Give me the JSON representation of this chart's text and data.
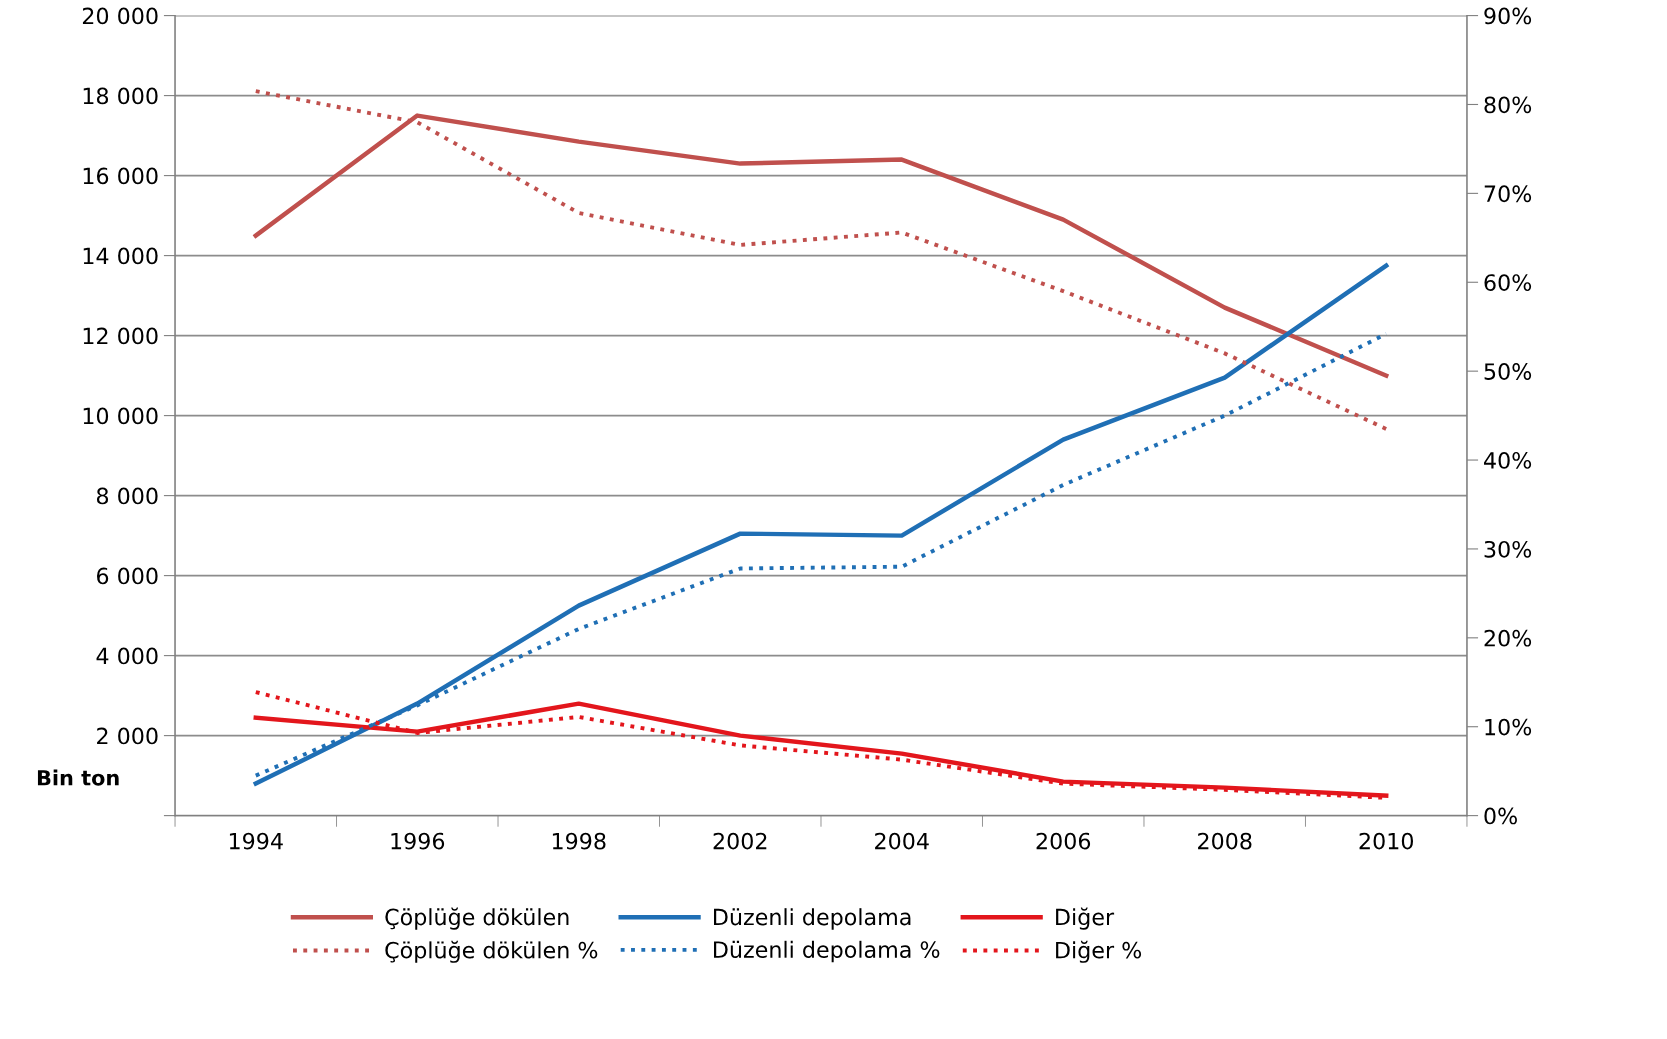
{
  "chart_data": {
    "type": "line",
    "categories": [
      "1994",
      "1996",
      "1998",
      "2002",
      "2004",
      "2006",
      "2008",
      "2010"
    ],
    "ylabel": "Bin ton",
    "ylim": [
      0,
      20000
    ],
    "yticks": [
      {
        "value": 0,
        "label": null
      },
      {
        "value": 2000,
        "label": "2 000"
      },
      {
        "value": 4000,
        "label": "4 000"
      },
      {
        "value": 6000,
        "label": "6 000"
      },
      {
        "value": 8000,
        "label": "8 000"
      },
      {
        "value": 10000,
        "label": "10 000"
      },
      {
        "value": 12000,
        "label": "12 000"
      },
      {
        "value": 14000,
        "label": "14 000"
      },
      {
        "value": 16000,
        "label": "16 000"
      },
      {
        "value": 18000,
        "label": "18 000"
      },
      {
        "value": 20000,
        "label": "20 000"
      }
    ],
    "y2lim": [
      0,
      90
    ],
    "y2ticks": [
      {
        "value": 0,
        "label": "0%"
      },
      {
        "value": 10,
        "label": "10%"
      },
      {
        "value": 20,
        "label": "20%"
      },
      {
        "value": 30,
        "label": "30%"
      },
      {
        "value": 40,
        "label": "40%"
      },
      {
        "value": 50,
        "label": "50%"
      },
      {
        "value": 60,
        "label": "60%"
      },
      {
        "value": 70,
        "label": "70%"
      },
      {
        "value": 80,
        "label": "80%"
      },
      {
        "value": 90,
        "label": "90%"
      }
    ],
    "grid": "y",
    "legend": "bottom",
    "marker": "none",
    "series": [
      {
        "name": "Çöplüğe dökülen",
        "color": "#c0504d",
        "line_style": "solid",
        "values": [
          14500,
          17500,
          16850,
          16300,
          16400,
          14900,
          12700,
          11000
        ]
      },
      {
        "name": "Düzenli depolama",
        "color": "#1f6fb5",
        "line_style": "solid",
        "values": [
          800,
          2800,
          5250,
          7050,
          7000,
          9400,
          10950,
          13750
        ]
      },
      {
        "name": "Diğer",
        "color": "#e3161c",
        "line_style": "solid",
        "values": [
          2450,
          2100,
          2800,
          2000,
          1550,
          850,
          700,
          500
        ]
      },
      {
        "name": "Çöplüğe dökülen %",
        "color": "#c0504d",
        "line_style": "dotted",
        "axis": "y2",
        "values": [
          81.5,
          78,
          67.8,
          64.2,
          65.6,
          59,
          52,
          43.5
        ]
      },
      {
        "name": "Düzenli depolama %",
        "color": "#1f6fb5",
        "line_style": "dotted",
        "axis": "y2",
        "values": [
          4.5,
          12.4,
          21,
          27.8,
          28,
          37.2,
          45,
          54.2
        ]
      },
      {
        "name": "Diğer %",
        "color": "#e3161c",
        "line_style": "dotted",
        "axis": "y2",
        "values": [
          13.9,
          9.3,
          11.1,
          7.9,
          6.3,
          3.6,
          2.9,
          2
        ]
      }
    ]
  }
}
